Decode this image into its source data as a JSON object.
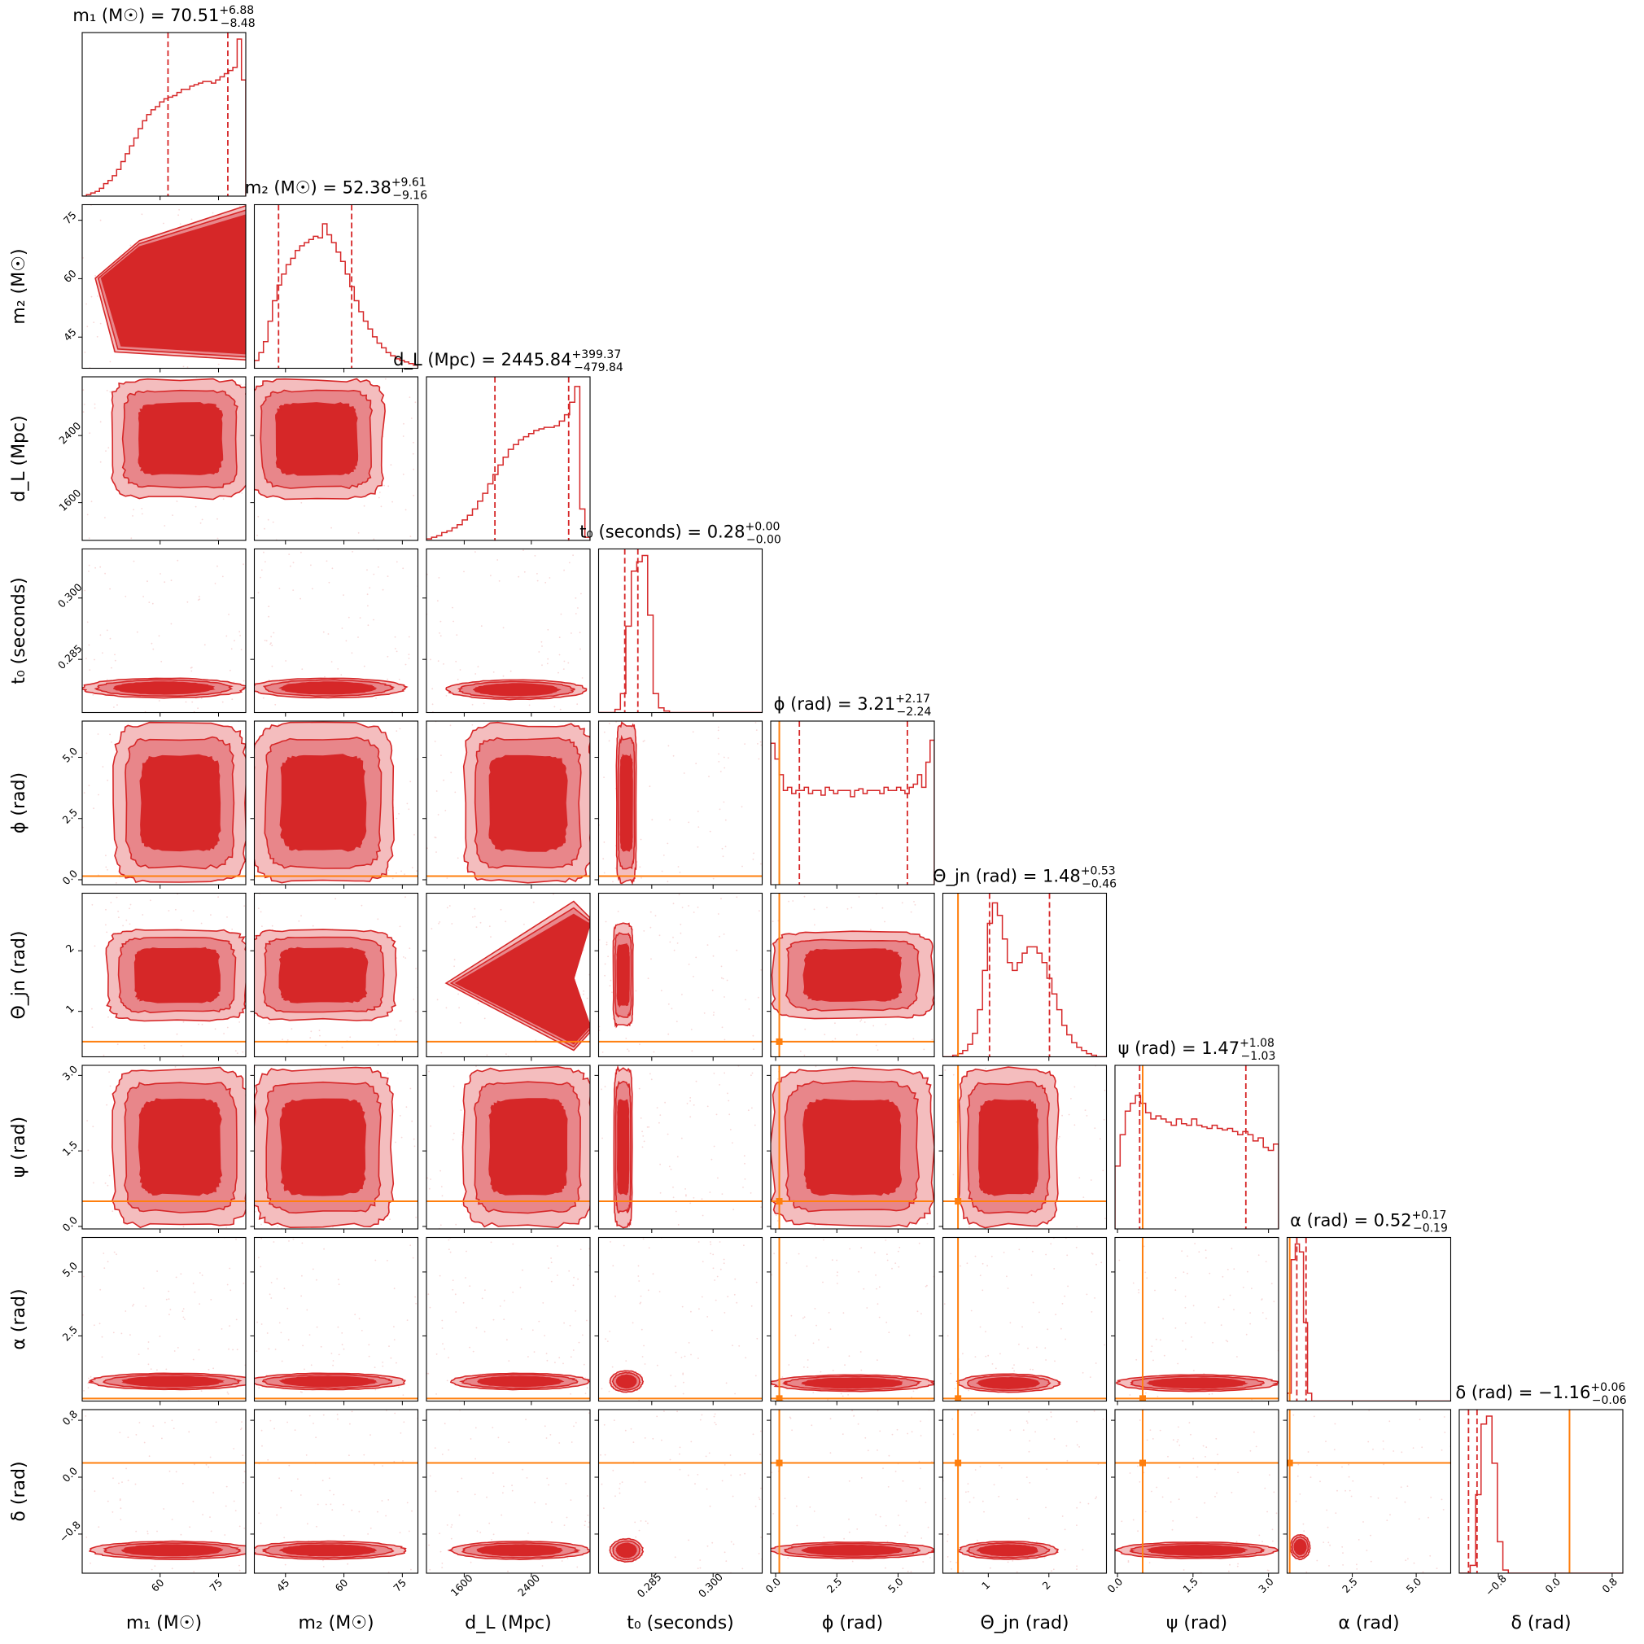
{
  "chart_data": {
    "type": "corner",
    "colors": {
      "posterior": "#d62728",
      "truth": "#ff7f0e",
      "frame": "#000000"
    },
    "parameters": [
      {
        "label": "m₁ (M☉)",
        "range": [
          40,
          82
        ],
        "truth": null,
        "ticks": [
          {
            "v": 60,
            "label": "60"
          },
          {
            "v": 75,
            "label": "75"
          }
        ],
        "median": 70.51,
        "plus": "6.88",
        "minus": "8.48",
        "title": "m₁ (M☉) = 70.51",
        "title_plus": "+6.88",
        "title_minus": "−8.48",
        "hist": [
          0,
          0.01,
          0.02,
          0.03,
          0.05,
          0.08,
          0.1,
          0.13,
          0.17,
          0.22,
          0.27,
          0.32,
          0.37,
          0.43,
          0.48,
          0.52,
          0.55,
          0.57,
          0.6,
          0.62,
          0.63,
          0.64,
          0.66,
          0.68,
          0.68,
          0.7,
          0.71,
          0.72,
          0.73,
          0.73,
          0.72,
          0.74,
          0.76,
          0.78,
          0.8,
          0.82,
          1,
          0.74
        ]
      },
      {
        "label": "m₂ (M☉)",
        "range": [
          37,
          79
        ],
        "truth": null,
        "ticks": [
          {
            "v": 45,
            "label": "45"
          },
          {
            "v": 60,
            "label": "60"
          },
          {
            "v": 75,
            "label": "75"
          }
        ],
        "median": 52.38,
        "plus": "9.61",
        "minus": "9.16",
        "title": "m₂ (M☉) = 52.38",
        "title_plus": "+9.61",
        "title_minus": "−9.16",
        "hist": [
          0.05,
          0.1,
          0.17,
          0.3,
          0.43,
          0.53,
          0.6,
          0.66,
          0.7,
          0.75,
          0.78,
          0.8,
          0.82,
          0.84,
          0.83,
          0.92,
          0.85,
          0.8,
          0.74,
          0.68,
          0.6,
          0.52,
          0.43,
          0.36,
          0.3,
          0.25,
          0.2,
          0.16,
          0.13,
          0.1,
          0.08,
          0.06,
          0.05,
          0.04,
          0.03,
          0.02
        ]
      },
      {
        "label": "d_L (Mpc)",
        "range": [
          1150,
          3100
        ],
        "truth": null,
        "ticks": [
          {
            "v": 1600,
            "label": "1600"
          },
          {
            "v": 2400,
            "label": "2400"
          }
        ],
        "median": 2445.84,
        "plus": "399.37",
        "minus": "479.84",
        "title": "d_L (Mpc) = 2445.84",
        "title_plus": "+399.37",
        "title_minus": "−479.84",
        "hist": [
          0.01,
          0.02,
          0.03,
          0.05,
          0.06,
          0.08,
          0.1,
          0.13,
          0.16,
          0.2,
          0.25,
          0.3,
          0.36,
          0.42,
          0.48,
          0.53,
          0.58,
          0.61,
          0.64,
          0.66,
          0.68,
          0.7,
          0.71,
          0.72,
          0.72,
          0.73,
          0.76,
          0.8,
          0.88,
          0.98,
          0.2,
          0.02
        ]
      },
      {
        "label": "t₀ (seconds)",
        "range": [
          0.272,
          0.312
        ],
        "truth": null,
        "ticks": [
          {
            "v": 0.285,
            "label": "0.285"
          },
          {
            "v": 0.3,
            "label": "0.300"
          }
        ],
        "median": 0.28,
        "plus": "0.00",
        "minus": "0.00",
        "title": "t₀ (seconds) = 0.28",
        "title_plus": "+0.00",
        "title_minus": "−0.00",
        "hist": [
          0,
          0,
          0,
          0.02,
          0.12,
          0.55,
          0.9,
          0.96,
          1,
          0.62,
          0.12,
          0.03,
          0.01,
          0,
          0,
          0,
          0,
          0,
          0,
          0,
          0,
          0,
          0,
          0,
          0,
          0,
          0,
          0,
          0,
          0
        ]
      },
      {
        "label": "ϕ (rad)",
        "range": [
          -0.2,
          6.48
        ],
        "truth": 0.15,
        "ticks": [
          {
            "v": 0,
            "label": "0.0"
          },
          {
            "v": 2.5,
            "label": "2.5"
          },
          {
            "v": 5,
            "label": "5.0"
          }
        ],
        "median": 3.21,
        "plus": "2.17",
        "minus": "2.24",
        "title": "ϕ (rad) = 3.21",
        "title_plus": "+2.17",
        "title_minus": "−2.24",
        "hist": [
          0.9,
          0.8,
          0.7,
          0.6,
          0.62,
          0.58,
          0.6,
          0.6,
          0.62,
          0.58,
          0.6,
          0.6,
          0.57,
          0.62,
          0.6,
          0.58,
          0.6,
          0.6,
          0.6,
          0.56,
          0.6,
          0.61,
          0.58,
          0.6,
          0.6,
          0.6,
          0.58,
          0.62,
          0.6,
          0.6,
          0.62,
          0.6,
          0.58,
          0.62,
          0.64,
          0.7,
          0.62,
          0.78,
          0.92
        ]
      },
      {
        "label": "Θ_jn (rad)",
        "range": [
          0.25,
          2.95
        ],
        "truth": 0.5,
        "ticks": [
          {
            "v": 1,
            "label": "1"
          },
          {
            "v": 2,
            "label": "2"
          }
        ],
        "median": 1.48,
        "plus": "0.53",
        "minus": "0.46",
        "title": "Θ_jn (rad) = 1.48",
        "title_plus": "+0.53",
        "title_minus": "−0.46",
        "hist": [
          0,
          0,
          0.01,
          0.02,
          0.04,
          0.08,
          0.15,
          0.3,
          0.55,
          0.85,
          0.98,
          0.9,
          0.75,
          0.6,
          0.55,
          0.6,
          0.66,
          0.7,
          0.7,
          0.66,
          0.6,
          0.5,
          0.4,
          0.3,
          0.2,
          0.14,
          0.09,
          0.06,
          0.04,
          0.02,
          0.01,
          0,
          0
        ]
      },
      {
        "label": "ψ (rad)",
        "range": [
          -0.05,
          3.2
        ],
        "truth": 0.5,
        "ticks": [
          {
            "v": 0,
            "label": "0.0"
          },
          {
            "v": 1.5,
            "label": "1.5"
          },
          {
            "v": 3,
            "label": "3.0"
          }
        ],
        "median": 1.47,
        "plus": "1.08",
        "minus": "1.03",
        "title": "ψ (rad) = 1.47",
        "title_plus": "+1.08",
        "title_minus": "−1.03",
        "hist": [
          0.4,
          0.6,
          0.75,
          0.8,
          0.85,
          0.8,
          0.74,
          0.7,
          0.72,
          0.7,
          0.68,
          0.66,
          0.7,
          0.67,
          0.66,
          0.7,
          0.66,
          0.65,
          0.64,
          0.66,
          0.64,
          0.63,
          0.64,
          0.62,
          0.6,
          0.62,
          0.6,
          0.56,
          0.58,
          0.52,
          0.5,
          0.54
        ]
      },
      {
        "label": "α (rad)",
        "range": [
          -0.05,
          6.35
        ],
        "truth": 0.05,
        "ticks": [
          {
            "v": 2.5,
            "label": "2.5"
          },
          {
            "v": 5,
            "label": "5.0"
          }
        ],
        "median": 0.52,
        "plus": "0.17",
        "minus": "0.19",
        "title": "α (rad) = 0.52",
        "title_plus": "+0.17",
        "title_minus": "−0.19",
        "hist": [
          0.05,
          0.9,
          1,
          0.95,
          0.5,
          0.05,
          0,
          0,
          0,
          0,
          0,
          0,
          0,
          0,
          0,
          0,
          0,
          0,
          0,
          0,
          0,
          0,
          0,
          0,
          0,
          0,
          0,
          0,
          0,
          0,
          0,
          0,
          0,
          0,
          0,
          0,
          0,
          0,
          0,
          0
        ]
      },
      {
        "label": "δ (rad)",
        "range": [
          -1.35,
          0.95
        ],
        "truth": 0.2,
        "ticks": [
          {
            "v": -0.8,
            "label": "−0.8"
          },
          {
            "v": 0,
            "label": "0.0"
          },
          {
            "v": 0.8,
            "label": "0.8"
          }
        ],
        "median": -1.16,
        "plus": "0.06",
        "minus": "0.06",
        "title": "δ (rad) = −1.16",
        "title_plus": "+0.06",
        "title_minus": "−0.06",
        "hist": [
          0,
          0,
          0.05,
          0.5,
          0.95,
          1,
          0.7,
          0.2,
          0.02,
          0,
          0,
          0,
          0,
          0,
          0,
          0,
          0,
          0,
          0,
          0,
          0,
          0,
          0,
          0,
          0,
          0,
          0,
          0,
          0,
          0
        ]
      }
    ]
  }
}
